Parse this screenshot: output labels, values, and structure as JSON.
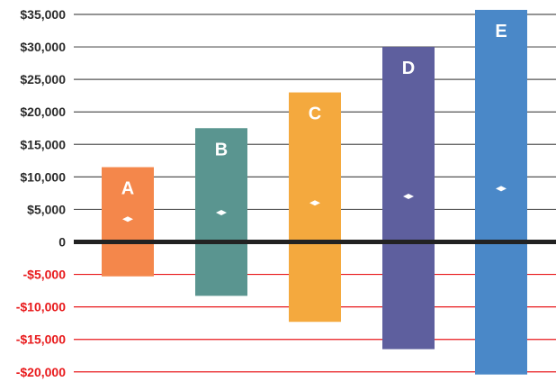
{
  "chart_data": {
    "type": "bar",
    "subtype": "floating-range",
    "title": "",
    "xlabel": "",
    "ylabel": "",
    "ylim": [
      -20000,
      35000
    ],
    "y_ticks": [
      35000,
      30000,
      25000,
      20000,
      15000,
      10000,
      5000,
      0,
      -5000,
      -10000,
      -15000,
      -20000
    ],
    "y_tick_labels": [
      "$35,000",
      "$30,000",
      "$25,000",
      "$20,000",
      "$15,000",
      "$10,000",
      "$5,000",
      "0",
      "-$5,000",
      "-$10,000",
      "-$15,000",
      "-$20,000"
    ],
    "grid": true,
    "legend": "none",
    "categories": [
      "A",
      "B",
      "C",
      "D",
      "E"
    ],
    "bars": [
      {
        "label": "A",
        "low": -5300,
        "high": 11500,
        "marker": 3500,
        "color": "#F4874B"
      },
      {
        "label": "B",
        "low": -8300,
        "high": 17500,
        "marker": 4500,
        "color": "#5A9590"
      },
      {
        "label": "C",
        "low": -12300,
        "high": 23000,
        "marker": 6000,
        "color": "#F4A93E"
      },
      {
        "label": "D",
        "low": -16500,
        "high": 30000,
        "marker": 7000,
        "color": "#5E5F9E"
      },
      {
        "label": "E",
        "low": -20400,
        "high": 35700,
        "marker": 8200,
        "color": "#4A88C8"
      }
    ],
    "colors": {
      "positive_grid": "#555555",
      "negative_grid": "#E8191B",
      "zero_line": "#222222",
      "positive_text": "#2b2b2b",
      "negative_text": "#E8191B",
      "marker": "#ffffff"
    }
  }
}
